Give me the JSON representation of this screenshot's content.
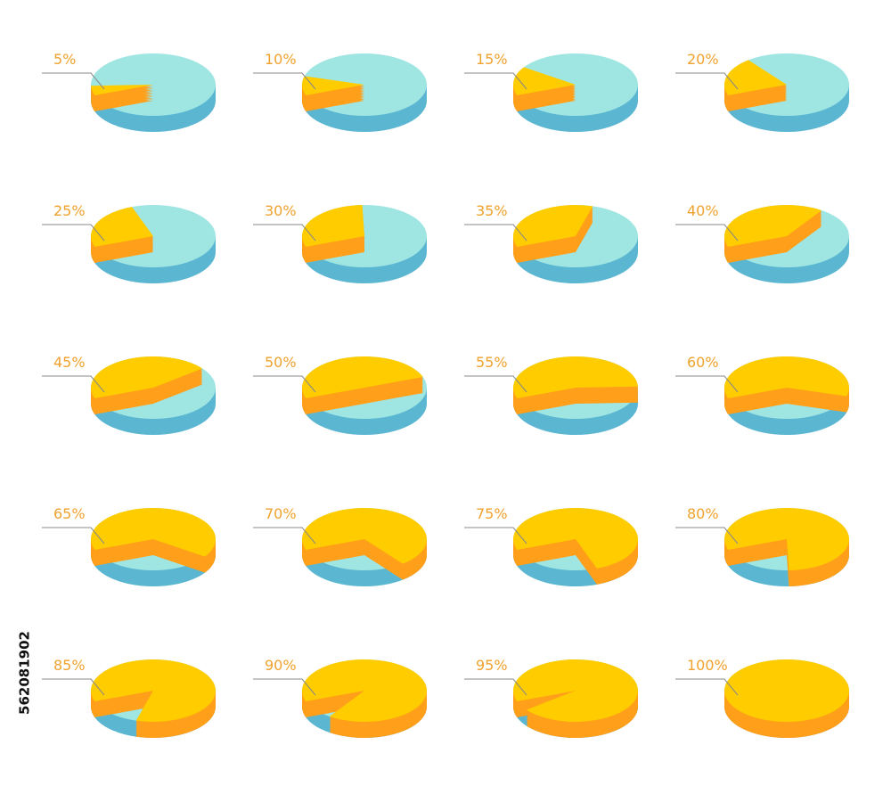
{
  "chart_data": [
    {
      "type": "pie",
      "values": [
        5
      ],
      "value_labels": [
        "5%"
      ],
      "colors": [
        "#ffcc00",
        "#9fe6e3"
      ],
      "side_colors": [
        "#ff9f1a",
        "#5bb6d2"
      ]
    },
    {
      "type": "pie",
      "values": [
        10
      ],
      "value_labels": [
        "10%"
      ],
      "colors": [
        "#ffcc00",
        "#9fe6e3"
      ],
      "side_colors": [
        "#ff9f1a",
        "#5bb6d2"
      ]
    },
    {
      "type": "pie",
      "values": [
        15
      ],
      "value_labels": [
        "15%"
      ],
      "colors": [
        "#ffcc00",
        "#9fe6e3"
      ],
      "side_colors": [
        "#ff9f1a",
        "#5bb6d2"
      ]
    },
    {
      "type": "pie",
      "values": [
        20
      ],
      "value_labels": [
        "20%"
      ],
      "colors": [
        "#ffcc00",
        "#9fe6e3"
      ],
      "side_colors": [
        "#ff9f1a",
        "#5bb6d2"
      ]
    },
    {
      "type": "pie",
      "values": [
        25
      ],
      "value_labels": [
        "25%"
      ],
      "colors": [
        "#ffcc00",
        "#9fe6e3"
      ],
      "side_colors": [
        "#ff9f1a",
        "#5bb6d2"
      ]
    },
    {
      "type": "pie",
      "values": [
        30
      ],
      "value_labels": [
        "30%"
      ],
      "colors": [
        "#ffcc00",
        "#9fe6e3"
      ],
      "side_colors": [
        "#ff9f1a",
        "#5bb6d2"
      ]
    },
    {
      "type": "pie",
      "values": [
        35
      ],
      "value_labels": [
        "35%"
      ],
      "colors": [
        "#ffcc00",
        "#9fe6e3"
      ],
      "side_colors": [
        "#ff9f1a",
        "#5bb6d2"
      ]
    },
    {
      "type": "pie",
      "values": [
        40
      ],
      "value_labels": [
        "40%"
      ],
      "colors": [
        "#ffcc00",
        "#9fe6e3"
      ],
      "side_colors": [
        "#ff9f1a",
        "#5bb6d2"
      ]
    },
    {
      "type": "pie",
      "values": [
        45
      ],
      "value_labels": [
        "45%"
      ],
      "colors": [
        "#ffcc00",
        "#9fe6e3"
      ],
      "side_colors": [
        "#ff9f1a",
        "#5bb6d2"
      ]
    },
    {
      "type": "pie",
      "values": [
        50
      ],
      "value_labels": [
        "50%"
      ],
      "colors": [
        "#ffcc00",
        "#9fe6e3"
      ],
      "side_colors": [
        "#ff9f1a",
        "#5bb6d2"
      ]
    },
    {
      "type": "pie",
      "values": [
        55
      ],
      "value_labels": [
        "55%"
      ],
      "colors": [
        "#ffcc00",
        "#9fe6e3"
      ],
      "side_colors": [
        "#ff9f1a",
        "#5bb6d2"
      ]
    },
    {
      "type": "pie",
      "values": [
        60
      ],
      "value_labels": [
        "60%"
      ],
      "colors": [
        "#ffcc00",
        "#9fe6e3"
      ],
      "side_colors": [
        "#ff9f1a",
        "#5bb6d2"
      ]
    },
    {
      "type": "pie",
      "values": [
        65
      ],
      "value_labels": [
        "65%"
      ],
      "colors": [
        "#ffcc00",
        "#9fe6e3"
      ],
      "side_colors": [
        "#ff9f1a",
        "#5bb6d2"
      ]
    },
    {
      "type": "pie",
      "values": [
        70
      ],
      "value_labels": [
        "70%"
      ],
      "colors": [
        "#ffcc00",
        "#9fe6e3"
      ],
      "side_colors": [
        "#ff9f1a",
        "#5bb6d2"
      ]
    },
    {
      "type": "pie",
      "values": [
        75
      ],
      "value_labels": [
        "75%"
      ],
      "colors": [
        "#ffcc00",
        "#9fe6e3"
      ],
      "side_colors": [
        "#ff9f1a",
        "#5bb6d2"
      ]
    },
    {
      "type": "pie",
      "values": [
        80
      ],
      "value_labels": [
        "80%"
      ],
      "colors": [
        "#ffcc00",
        "#9fe6e3"
      ],
      "side_colors": [
        "#ff9f1a",
        "#5bb6d2"
      ]
    },
    {
      "type": "pie",
      "values": [
        85
      ],
      "value_labels": [
        "85%"
      ],
      "colors": [
        "#ffcc00",
        "#9fe6e3"
      ],
      "side_colors": [
        "#ff9f1a",
        "#5bb6d2"
      ]
    },
    {
      "type": "pie",
      "values": [
        90
      ],
      "value_labels": [
        "90%"
      ],
      "colors": [
        "#ffcc00",
        "#9fe6e3"
      ],
      "side_colors": [
        "#ff9f1a",
        "#5bb6d2"
      ]
    },
    {
      "type": "pie",
      "values": [
        95
      ],
      "value_labels": [
        "95%"
      ],
      "colors": [
        "#ffcc00",
        "#9fe6e3"
      ],
      "side_colors": [
        "#ff9f1a",
        "#5bb6d2"
      ]
    },
    {
      "type": "pie",
      "values": [
        100
      ],
      "value_labels": [
        "100%"
      ],
      "colors": [
        "#ffcc00",
        "#9fe6e3"
      ],
      "side_colors": [
        "#ff9f1a",
        "#5bb6d2"
      ]
    }
  ],
  "stock_id": "562081902"
}
